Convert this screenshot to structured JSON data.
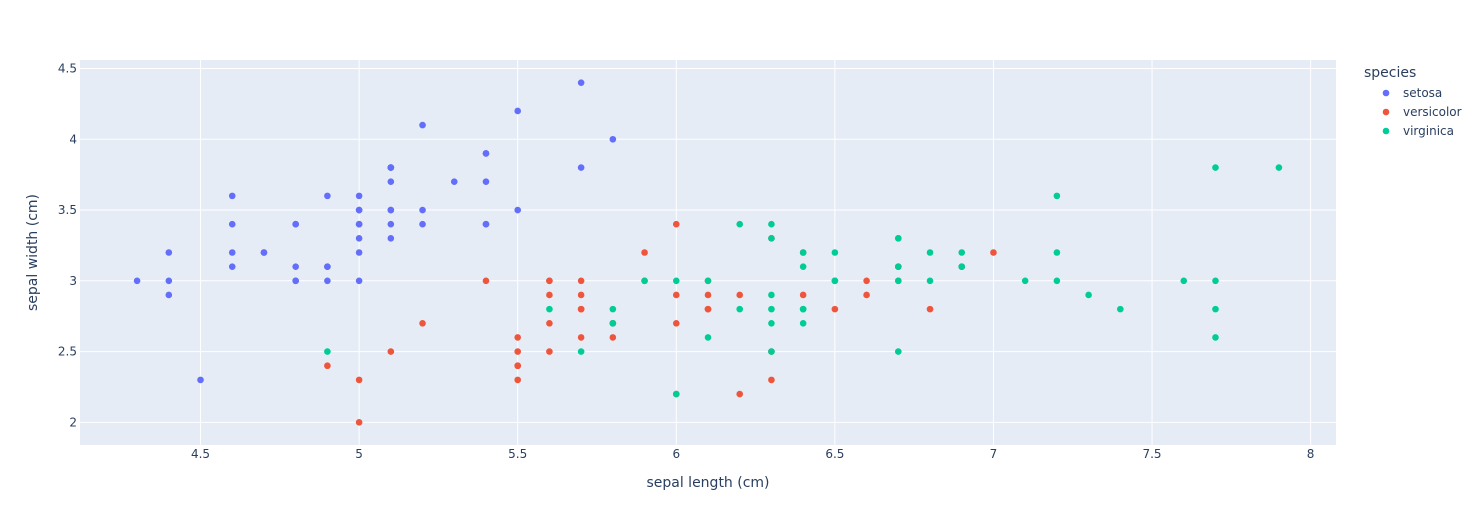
{
  "chart_data": {
    "type": "scatter",
    "xlabel": "sepal length (cm)",
    "ylabel": "sepal width (cm)",
    "xlim": [
      4.12,
      8.08
    ],
    "ylim": [
      1.84,
      4.56
    ],
    "xticks": [
      4.5,
      5,
      5.5,
      6,
      6.5,
      7,
      7.5,
      8
    ],
    "xtick_labels": [
      "4.5",
      "5",
      "5.5",
      "6",
      "6.5",
      "7",
      "7.5",
      "8"
    ],
    "yticks": [
      2,
      2.5,
      3,
      3.5,
      4,
      4.5
    ],
    "ytick_labels": [
      "2",
      "2.5",
      "3",
      "3.5",
      "4",
      "4.5"
    ],
    "grid": true,
    "legend_placement": "right",
    "legend_title": "species",
    "series": [
      {
        "name": "setosa",
        "color": "#636efa",
        "points": [
          [
            5.1,
            3.5
          ],
          [
            4.9,
            3.0
          ],
          [
            4.7,
            3.2
          ],
          [
            4.6,
            3.1
          ],
          [
            5.0,
            3.6
          ],
          [
            5.4,
            3.9
          ],
          [
            4.6,
            3.4
          ],
          [
            5.0,
            3.4
          ],
          [
            4.4,
            2.9
          ],
          [
            4.9,
            3.1
          ],
          [
            5.4,
            3.7
          ],
          [
            4.8,
            3.4
          ],
          [
            4.8,
            3.0
          ],
          [
            4.3,
            3.0
          ],
          [
            5.8,
            4.0
          ],
          [
            5.7,
            4.4
          ],
          [
            5.4,
            3.9
          ],
          [
            5.1,
            3.5
          ],
          [
            5.7,
            3.8
          ],
          [
            5.1,
            3.8
          ],
          [
            5.4,
            3.4
          ],
          [
            5.1,
            3.7
          ],
          [
            4.6,
            3.6
          ],
          [
            5.1,
            3.3
          ],
          [
            4.8,
            3.4
          ],
          [
            5.0,
            3.0
          ],
          [
            5.0,
            3.4
          ],
          [
            5.2,
            3.5
          ],
          [
            5.2,
            3.4
          ],
          [
            4.7,
            3.2
          ],
          [
            4.8,
            3.1
          ],
          [
            5.4,
            3.4
          ],
          [
            5.2,
            4.1
          ],
          [
            5.5,
            4.2
          ],
          [
            4.9,
            3.1
          ],
          [
            5.0,
            3.2
          ],
          [
            5.5,
            3.5
          ],
          [
            4.9,
            3.6
          ],
          [
            4.4,
            3.0
          ],
          [
            5.1,
            3.4
          ],
          [
            5.0,
            3.5
          ],
          [
            4.5,
            2.3
          ],
          [
            4.4,
            3.2
          ],
          [
            5.0,
            3.5
          ],
          [
            5.1,
            3.8
          ],
          [
            4.8,
            3.0
          ],
          [
            5.1,
            3.8
          ],
          [
            4.6,
            3.2
          ],
          [
            5.3,
            3.7
          ],
          [
            5.0,
            3.3
          ]
        ]
      },
      {
        "name": "versicolor",
        "color": "#ef553b",
        "points": [
          [
            7.0,
            3.2
          ],
          [
            6.4,
            3.2
          ],
          [
            6.9,
            3.1
          ],
          [
            5.5,
            2.3
          ],
          [
            6.5,
            2.8
          ],
          [
            5.7,
            2.8
          ],
          [
            6.3,
            3.3
          ],
          [
            4.9,
            2.4
          ],
          [
            6.6,
            2.9
          ],
          [
            5.2,
            2.7
          ],
          [
            5.0,
            2.0
          ],
          [
            5.9,
            3.0
          ],
          [
            6.0,
            2.2
          ],
          [
            6.1,
            2.9
          ],
          [
            5.6,
            2.9
          ],
          [
            6.7,
            3.1
          ],
          [
            5.6,
            3.0
          ],
          [
            5.8,
            2.7
          ],
          [
            6.2,
            2.2
          ],
          [
            5.6,
            2.5
          ],
          [
            5.9,
            3.2
          ],
          [
            6.1,
            2.8
          ],
          [
            6.3,
            2.5
          ],
          [
            6.1,
            2.8
          ],
          [
            6.4,
            2.9
          ],
          [
            6.6,
            3.0
          ],
          [
            6.8,
            2.8
          ],
          [
            6.7,
            3.0
          ],
          [
            6.0,
            2.9
          ],
          [
            5.7,
            2.6
          ],
          [
            5.5,
            2.4
          ],
          [
            5.5,
            2.4
          ],
          [
            5.8,
            2.7
          ],
          [
            6.0,
            2.7
          ],
          [
            5.4,
            3.0
          ],
          [
            6.0,
            3.4
          ],
          [
            6.7,
            3.1
          ],
          [
            6.3,
            2.3
          ],
          [
            5.6,
            3.0
          ],
          [
            5.5,
            2.5
          ],
          [
            5.5,
            2.6
          ],
          [
            6.1,
            3.0
          ],
          [
            5.8,
            2.6
          ],
          [
            5.0,
            2.3
          ],
          [
            5.6,
            2.7
          ],
          [
            5.7,
            3.0
          ],
          [
            5.7,
            2.9
          ],
          [
            6.2,
            2.9
          ],
          [
            5.1,
            2.5
          ],
          [
            5.7,
            2.8
          ]
        ]
      },
      {
        "name": "virginica",
        "color": "#00cc96",
        "points": [
          [
            6.3,
            3.3
          ],
          [
            5.8,
            2.7
          ],
          [
            7.1,
            3.0
          ],
          [
            6.3,
            2.9
          ],
          [
            6.5,
            3.0
          ],
          [
            7.6,
            3.0
          ],
          [
            4.9,
            2.5
          ],
          [
            7.3,
            2.9
          ],
          [
            6.7,
            2.5
          ],
          [
            7.2,
            3.6
          ],
          [
            6.5,
            3.2
          ],
          [
            6.4,
            2.7
          ],
          [
            6.8,
            3.0
          ],
          [
            5.7,
            2.5
          ],
          [
            5.8,
            2.8
          ],
          [
            6.4,
            3.2
          ],
          [
            6.5,
            3.0
          ],
          [
            7.7,
            3.8
          ],
          [
            7.7,
            2.6
          ],
          [
            6.0,
            2.2
          ],
          [
            6.9,
            3.2
          ],
          [
            5.6,
            2.8
          ],
          [
            7.7,
            2.8
          ],
          [
            6.3,
            2.7
          ],
          [
            6.7,
            3.3
          ],
          [
            7.2,
            3.2
          ],
          [
            6.2,
            2.8
          ],
          [
            6.1,
            3.0
          ],
          [
            6.4,
            2.8
          ],
          [
            7.2,
            3.0
          ],
          [
            7.4,
            2.8
          ],
          [
            7.9,
            3.8
          ],
          [
            6.4,
            2.8
          ],
          [
            6.3,
            2.8
          ],
          [
            6.1,
            2.6
          ],
          [
            7.7,
            3.0
          ],
          [
            6.3,
            3.4
          ],
          [
            6.4,
            3.1
          ],
          [
            6.0,
            3.0
          ],
          [
            6.9,
            3.1
          ],
          [
            6.7,
            3.1
          ],
          [
            6.9,
            3.1
          ],
          [
            5.8,
            2.7
          ],
          [
            6.8,
            3.2
          ],
          [
            6.7,
            3.3
          ],
          [
            6.7,
            3.0
          ],
          [
            6.3,
            2.5
          ],
          [
            6.5,
            3.0
          ],
          [
            6.2,
            3.4
          ],
          [
            5.9,
            3.0
          ]
        ]
      }
    ]
  }
}
